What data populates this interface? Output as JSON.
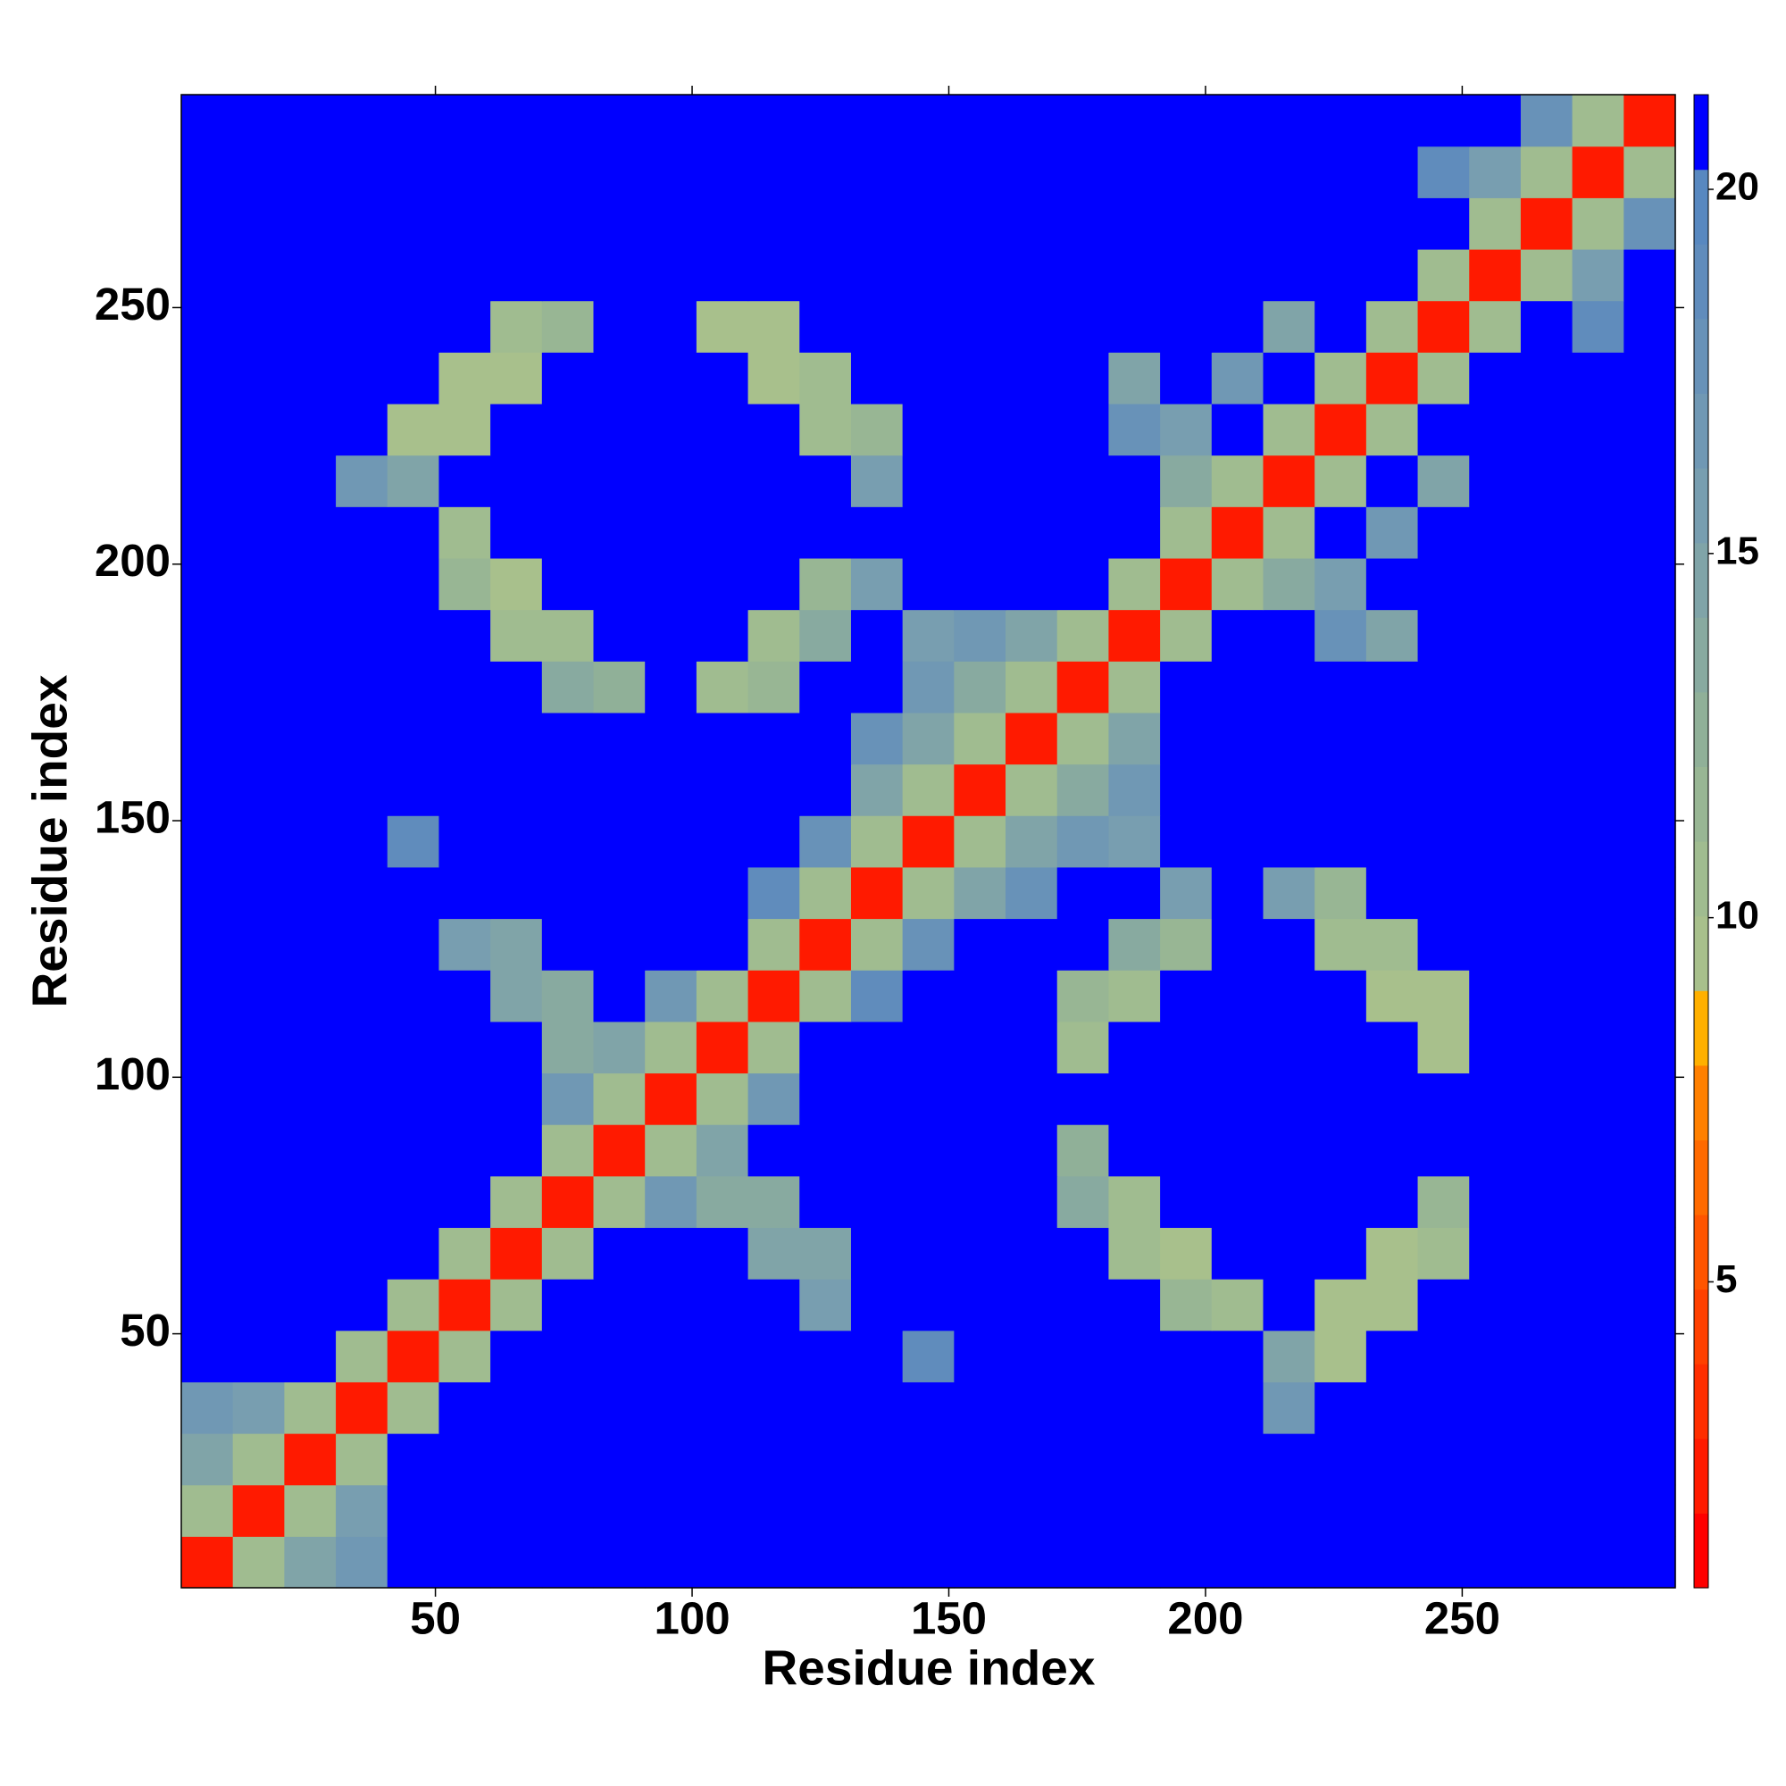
{
  "chart_data": {
    "type": "heatmap",
    "xlabel": "Residue index",
    "ylabel": "Residue index",
    "xlim": [
      0.5,
      291.5
    ],
    "ylim": [
      0.5,
      291.5
    ],
    "xticks": [
      50,
      100,
      150,
      200,
      250
    ],
    "yticks": [
      50,
      100,
      150,
      200,
      250
    ],
    "clim": [
      0.8,
      21.3
    ],
    "cticks": [
      5,
      10,
      15,
      20
    ],
    "colorscale": [
      "#ff0000",
      "#ff1a00",
      "#ff2e00",
      "#ff4000",
      "#ff5500",
      "#ff6a00",
      "#ff8000",
      "#ffb000",
      "#a8c08c",
      "#a0bc90",
      "#98b694",
      "#90b098",
      "#88aaa0",
      "#80a4a8",
      "#789eb0",
      "#7098b4",
      "#6892b8",
      "#608cbc",
      "#5888c0",
      "#0000ff"
    ],
    "z": [
      [
        2,
        11,
        15,
        17,
        21,
        21,
        21,
        21,
        21,
        21,
        21,
        21,
        21,
        21,
        21,
        21,
        21,
        21,
        21,
        21,
        21,
        21,
        21,
        21,
        21,
        21,
        21,
        21,
        21
      ],
      [
        11,
        2,
        11,
        16,
        21,
        21,
        21,
        21,
        21,
        21,
        21,
        21,
        21,
        21,
        21,
        21,
        21,
        21,
        21,
        21,
        21,
        21,
        21,
        21,
        21,
        21,
        21,
        21,
        21
      ],
      [
        15,
        11,
        2,
        11,
        21,
        21,
        21,
        21,
        21,
        21,
        21,
        21,
        21,
        21,
        21,
        21,
        21,
        21,
        21,
        21,
        21,
        21,
        21,
        21,
        21,
        21,
        21,
        21,
        21
      ],
      [
        17,
        16,
        11,
        2,
        11,
        21,
        21,
        21,
        21,
        21,
        21,
        21,
        21,
        21,
        21,
        21,
        21,
        21,
        21,
        21,
        21,
        17,
        21,
        21,
        21,
        21,
        21,
        21,
        21
      ],
      [
        21,
        21,
        21,
        11,
        2,
        11,
        21,
        21,
        21,
        21,
        21,
        21,
        21,
        21,
        19,
        21,
        21,
        21,
        21,
        21,
        21,
        15,
        10,
        21,
        21,
        21,
        21,
        21,
        21
      ],
      [
        21,
        21,
        21,
        21,
        11,
        2,
        11,
        21,
        21,
        21,
        21,
        21,
        16,
        21,
        21,
        21,
        21,
        21,
        21,
        12,
        11,
        21,
        10,
        10,
        21,
        21,
        21,
        21,
        21
      ],
      [
        21,
        21,
        21,
        21,
        21,
        11,
        2,
        11,
        21,
        21,
        21,
        15,
        15,
        21,
        21,
        21,
        21,
        21,
        11,
        10,
        21,
        21,
        21,
        10,
        11,
        21,
        21,
        21,
        21
      ],
      [
        21,
        21,
        21,
        21,
        21,
        21,
        11,
        2,
        11,
        17,
        14,
        14,
        21,
        21,
        21,
        21,
        21,
        14,
        11,
        21,
        21,
        21,
        21,
        21,
        12,
        21,
        21,
        21,
        21
      ],
      [
        21,
        21,
        21,
        21,
        21,
        21,
        21,
        11,
        2,
        11,
        15,
        21,
        21,
        21,
        21,
        21,
        21,
        13,
        21,
        21,
        21,
        21,
        21,
        21,
        21,
        21,
        21,
        21,
        21
      ],
      [
        21,
        21,
        21,
        21,
        21,
        21,
        21,
        17,
        11,
        2,
        11,
        17,
        21,
        21,
        21,
        21,
        21,
        21,
        21,
        21,
        21,
        21,
        21,
        21,
        21,
        21,
        21,
        21,
        21
      ],
      [
        21,
        21,
        21,
        21,
        21,
        21,
        21,
        14,
        15,
        11,
        2,
        11,
        21,
        21,
        21,
        21,
        21,
        11,
        21,
        21,
        21,
        21,
        21,
        21,
        10,
        21,
        21,
        21,
        21
      ],
      [
        21,
        21,
        21,
        21,
        21,
        21,
        15,
        14,
        21,
        17,
        11,
        2,
        11,
        19,
        21,
        21,
        21,
        12,
        11,
        21,
        21,
        21,
        21,
        10,
        10,
        21,
        21,
        21,
        21
      ],
      [
        21,
        21,
        21,
        21,
        21,
        16,
        15,
        21,
        21,
        21,
        21,
        11,
        2,
        11,
        18,
        21,
        21,
        21,
        14,
        12,
        21,
        21,
        11,
        11,
        21,
        21,
        21,
        21,
        21
      ],
      [
        21,
        21,
        21,
        21,
        21,
        21,
        21,
        21,
        21,
        21,
        21,
        19,
        11,
        2,
        11,
        15,
        18,
        21,
        21,
        16,
        21,
        16,
        12,
        21,
        21,
        21,
        21,
        21,
        21
      ],
      [
        21,
        21,
        21,
        21,
        19,
        21,
        21,
        21,
        21,
        21,
        21,
        21,
        18,
        11,
        2,
        11,
        15,
        17,
        16,
        21,
        21,
        21,
        21,
        21,
        21,
        21,
        21,
        21,
        21
      ],
      [
        21,
        21,
        21,
        21,
        21,
        21,
        21,
        21,
        21,
        21,
        21,
        21,
        21,
        15,
        11,
        2,
        11,
        14,
        17,
        21,
        21,
        21,
        21,
        21,
        21,
        21,
        21,
        21,
        21
      ],
      [
        21,
        21,
        21,
        21,
        21,
        21,
        21,
        21,
        21,
        21,
        21,
        21,
        21,
        18,
        15,
        11,
        2,
        11,
        15,
        21,
        21,
        21,
        21,
        21,
        21,
        21,
        21,
        21,
        21
      ],
      [
        21,
        21,
        21,
        21,
        21,
        21,
        21,
        14,
        13,
        21,
        11,
        12,
        21,
        21,
        17,
        14,
        11,
        2,
        11,
        21,
        21,
        21,
        21,
        21,
        21,
        21,
        21,
        21,
        21
      ],
      [
        21,
        21,
        21,
        21,
        21,
        21,
        11,
        11,
        21,
        21,
        21,
        11,
        14,
        21,
        16,
        17,
        15,
        11,
        2,
        11,
        21,
        21,
        18,
        15,
        21,
        21,
        21,
        21,
        21
      ],
      [
        21,
        21,
        21,
        21,
        21,
        12,
        10,
        21,
        21,
        21,
        21,
        21,
        12,
        16,
        21,
        21,
        21,
        21,
        11,
        2,
        11,
        14,
        16,
        21,
        21,
        21,
        21,
        21,
        21
      ],
      [
        21,
        21,
        21,
        21,
        21,
        11,
        21,
        21,
        21,
        21,
        21,
        21,
        21,
        21,
        21,
        21,
        21,
        21,
        21,
        11,
        2,
        11,
        21,
        17,
        21,
        21,
        21,
        21,
        21
      ],
      [
        21,
        21,
        21,
        17,
        15,
        21,
        21,
        21,
        21,
        21,
        21,
        21,
        21,
        16,
        21,
        21,
        21,
        21,
        21,
        14,
        11,
        2,
        11,
        21,
        15,
        21,
        21,
        21,
        21
      ],
      [
        21,
        21,
        21,
        21,
        10,
        10,
        21,
        21,
        21,
        21,
        21,
        21,
        11,
        12,
        21,
        21,
        21,
        21,
        18,
        16,
        21,
        11,
        2,
        11,
        21,
        21,
        21,
        21,
        21
      ],
      [
        21,
        21,
        21,
        21,
        21,
        10,
        10,
        21,
        21,
        21,
        21,
        10,
        11,
        21,
        21,
        21,
        21,
        21,
        15,
        21,
        17,
        21,
        11,
        2,
        11,
        21,
        21,
        21,
        21
      ],
      [
        21,
        21,
        21,
        21,
        21,
        21,
        11,
        12,
        21,
        21,
        10,
        10,
        21,
        21,
        21,
        21,
        21,
        21,
        21,
        21,
        21,
        15,
        21,
        11,
        2,
        11,
        21,
        19,
        21
      ],
      [
        21,
        21,
        21,
        21,
        21,
        21,
        21,
        21,
        21,
        21,
        21,
        21,
        21,
        21,
        21,
        21,
        21,
        21,
        21,
        21,
        21,
        21,
        21,
        21,
        11,
        2,
        11,
        16,
        21
      ],
      [
        21,
        21,
        21,
        21,
        21,
        21,
        21,
        21,
        21,
        21,
        21,
        21,
        21,
        21,
        21,
        21,
        21,
        21,
        21,
        21,
        21,
        21,
        21,
        21,
        21,
        11,
        2,
        11,
        18
      ],
      [
        21,
        21,
        21,
        21,
        21,
        21,
        21,
        21,
        21,
        21,
        21,
        21,
        21,
        21,
        21,
        21,
        21,
        21,
        21,
        21,
        21,
        21,
        21,
        21,
        19,
        16,
        11,
        2,
        11
      ],
      [
        21,
        21,
        21,
        21,
        21,
        21,
        21,
        21,
        21,
        21,
        21,
        21,
        21,
        21,
        21,
        21,
        21,
        21,
        21,
        21,
        21,
        21,
        21,
        21,
        21,
        21,
        18,
        11,
        2
      ]
    ]
  }
}
